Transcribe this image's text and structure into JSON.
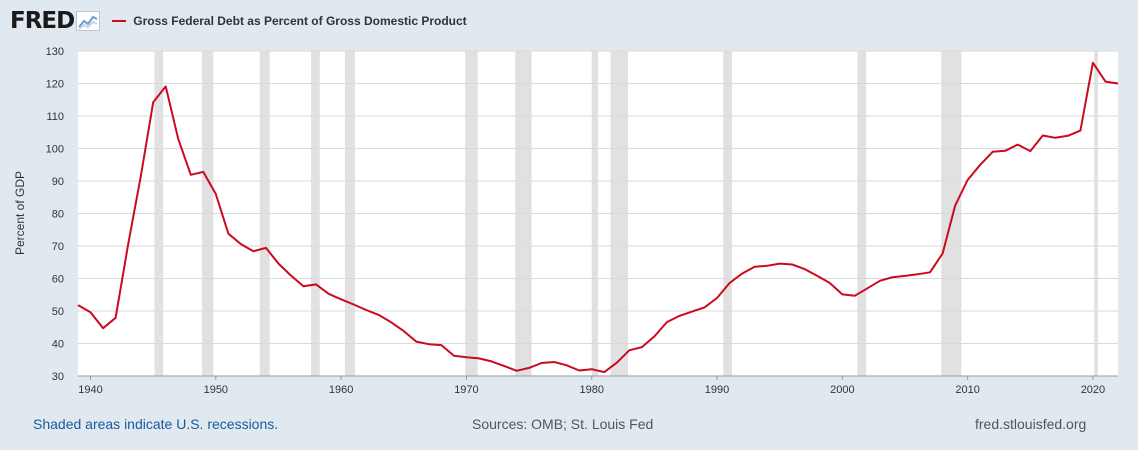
{
  "header": {
    "logo_text": "FRED",
    "series_title": "Gross Federal Debt as Percent of Gross Domestic Product"
  },
  "colors": {
    "series": "#cc0a1e",
    "recession": "#e1e1e1",
    "background": "#e1e9f0",
    "link": "#1a5a9e"
  },
  "chart_data": {
    "type": "line",
    "title": "Gross Federal Debt as Percent of Gross Domestic Product",
    "xlabel": "",
    "ylabel": "Percent of GDP",
    "xlim": [
      1939,
      2022
    ],
    "ylim": [
      30,
      130
    ],
    "yticks": [
      30,
      40,
      50,
      60,
      70,
      80,
      90,
      100,
      110,
      120,
      130
    ],
    "xticks": [
      1940,
      1950,
      1960,
      1970,
      1980,
      1990,
      2000,
      2010,
      2020
    ],
    "grid": true,
    "recessions": [
      [
        1945.1,
        1945.8
      ],
      [
        1948.9,
        1949.8
      ],
      [
        1953.5,
        1954.3
      ],
      [
        1957.6,
        1958.3
      ],
      [
        1960.3,
        1961.1
      ],
      [
        1969.9,
        1970.9
      ],
      [
        1973.9,
        1975.2
      ],
      [
        1980.0,
        1980.5
      ],
      [
        1981.5,
        1982.9
      ],
      [
        1990.5,
        1991.2
      ],
      [
        2001.2,
        2001.9
      ],
      [
        2007.9,
        2009.5
      ],
      [
        2020.1,
        2020.4
      ]
    ],
    "series": [
      {
        "name": "Gross Federal Debt as Percent of Gross Domestic Product",
        "x": [
          1939,
          1940,
          1941,
          1942,
          1943,
          1944,
          1945,
          1946,
          1947,
          1948,
          1949,
          1950,
          1951,
          1952,
          1953,
          1954,
          1955,
          1956,
          1957,
          1958,
          1959,
          1960,
          1961,
          1962,
          1963,
          1964,
          1965,
          1966,
          1967,
          1968,
          1969,
          1970,
          1971,
          1972,
          1973,
          1974,
          1975,
          1976,
          1977,
          1978,
          1979,
          1980,
          1981,
          1982,
          1983,
          1984,
          1985,
          1986,
          1987,
          1988,
          1989,
          1990,
          1991,
          1992,
          1993,
          1994,
          1995,
          1996,
          1997,
          1998,
          1999,
          2000,
          2001,
          2002,
          2003,
          2004,
          2005,
          2006,
          2007,
          2008,
          2009,
          2010,
          2011,
          2012,
          2013,
          2014,
          2015,
          2016,
          2017,
          2018,
          2019,
          2020,
          2021,
          2022
        ],
        "values": [
          51.8,
          49.6,
          44.7,
          47.9,
          70.4,
          91.3,
          114.2,
          119.1,
          103.0,
          91.9,
          92.8,
          86.0,
          73.8,
          70.6,
          68.4,
          69.4,
          64.6,
          60.9,
          57.6,
          58.2,
          55.3,
          53.6,
          52.0,
          50.3,
          48.8,
          46.5,
          43.8,
          40.6,
          39.8,
          39.5,
          36.2,
          35.8,
          35.4,
          34.5,
          33.1,
          31.6,
          32.5,
          34.0,
          34.3,
          33.3,
          31.7,
          32.1,
          31.2,
          34.1,
          37.9,
          38.9,
          42.2,
          46.6,
          48.5,
          49.8,
          51.1,
          54.0,
          58.6,
          61.5,
          63.6,
          63.9,
          64.6,
          64.3,
          62.9,
          60.8,
          58.6,
          55.1,
          54.7,
          57.0,
          59.3,
          60.4,
          60.8,
          61.3,
          61.9,
          67.7,
          82.4,
          90.3,
          95.0,
          99.0,
          99.3,
          101.2,
          99.2,
          104.0,
          103.3,
          103.9,
          105.5,
          126.4,
          120.6,
          120.0
        ]
      }
    ]
  },
  "footer": {
    "recession_note": "Shaded areas indicate U.S. recessions.",
    "sources": "Sources: OMB; St. Louis Fed",
    "site": "fred.stlouisfed.org"
  }
}
